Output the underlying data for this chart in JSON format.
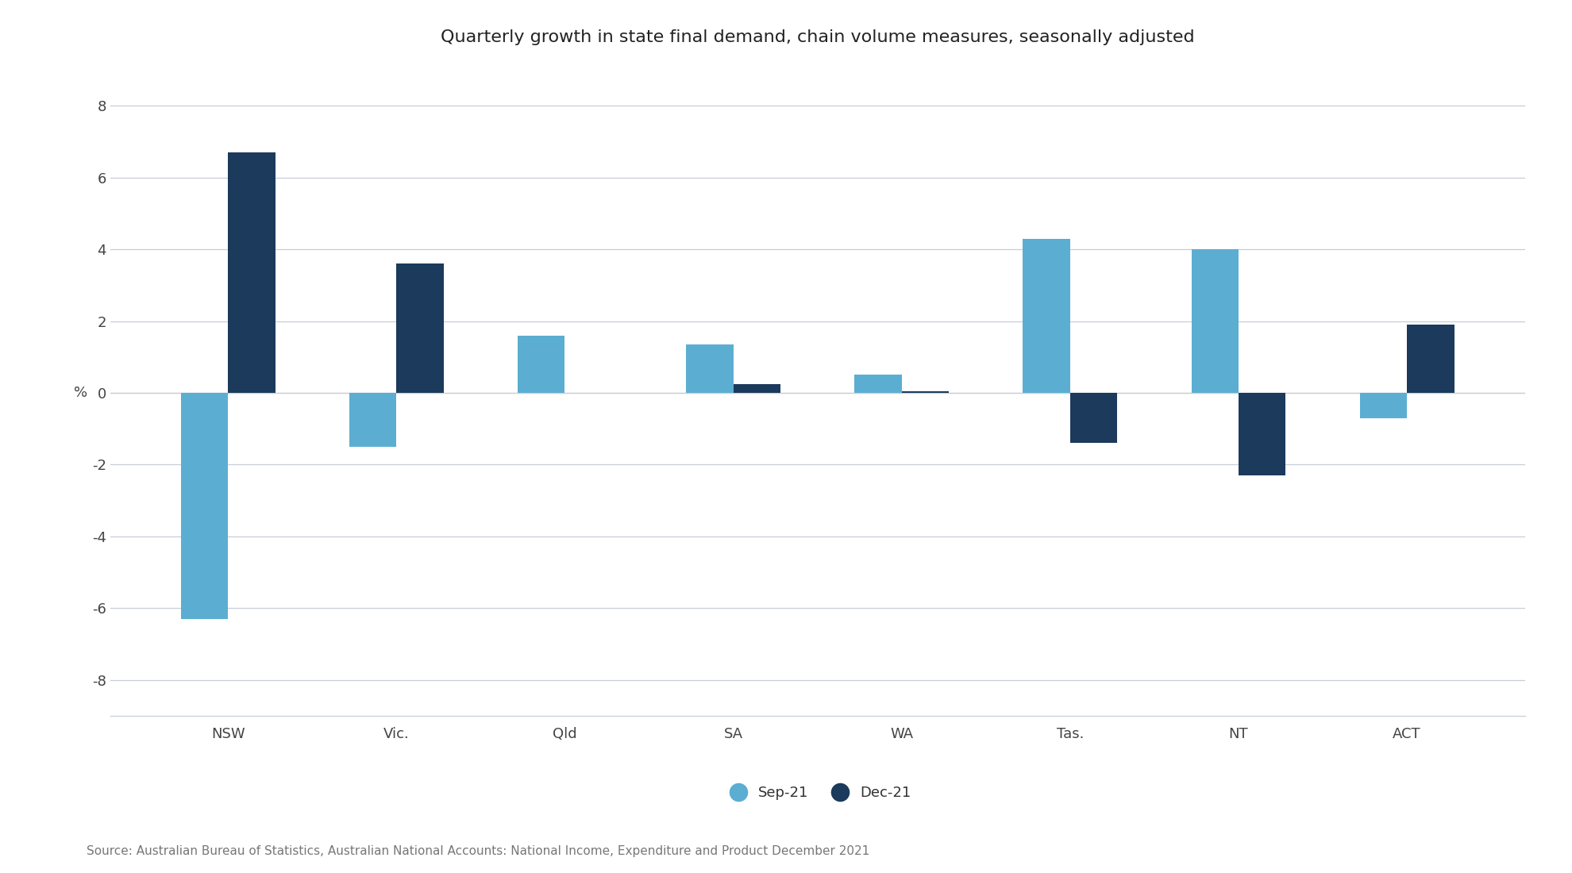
{
  "title": "Quarterly growth in state final demand, chain volume measures, seasonally adjusted",
  "categories": [
    "NSW",
    "Vic.",
    "Qld",
    "SA",
    "WA",
    "Tas.",
    "NT",
    "ACT"
  ],
  "sep21": [
    -6.3,
    -1.5,
    1.6,
    1.35,
    0.5,
    4.3,
    4.0,
    -0.7
  ],
  "dec21": [
    6.7,
    3.6,
    0.0,
    0.25,
    0.05,
    -1.4,
    -2.3,
    1.9
  ],
  "sep21_color": "#5BAED1",
  "dec21_color": "#1B3A5C",
  "ylabel": "%",
  "ylim": [
    -9,
    9
  ],
  "yticks": [
    -8,
    -6,
    -4,
    -2,
    0,
    2,
    4,
    6,
    8
  ],
  "background_color": "#FFFFFF",
  "grid_color": "#C8CDD8",
  "source_text": "Source: Australian Bureau of Statistics, Australian National Accounts: National Income, Expenditure and Product December 2021",
  "legend_sep21": "Sep-21",
  "legend_dec21": "Dec-21",
  "title_fontsize": 16,
  "tick_fontsize": 13,
  "source_fontsize": 11,
  "bar_width": 0.28
}
